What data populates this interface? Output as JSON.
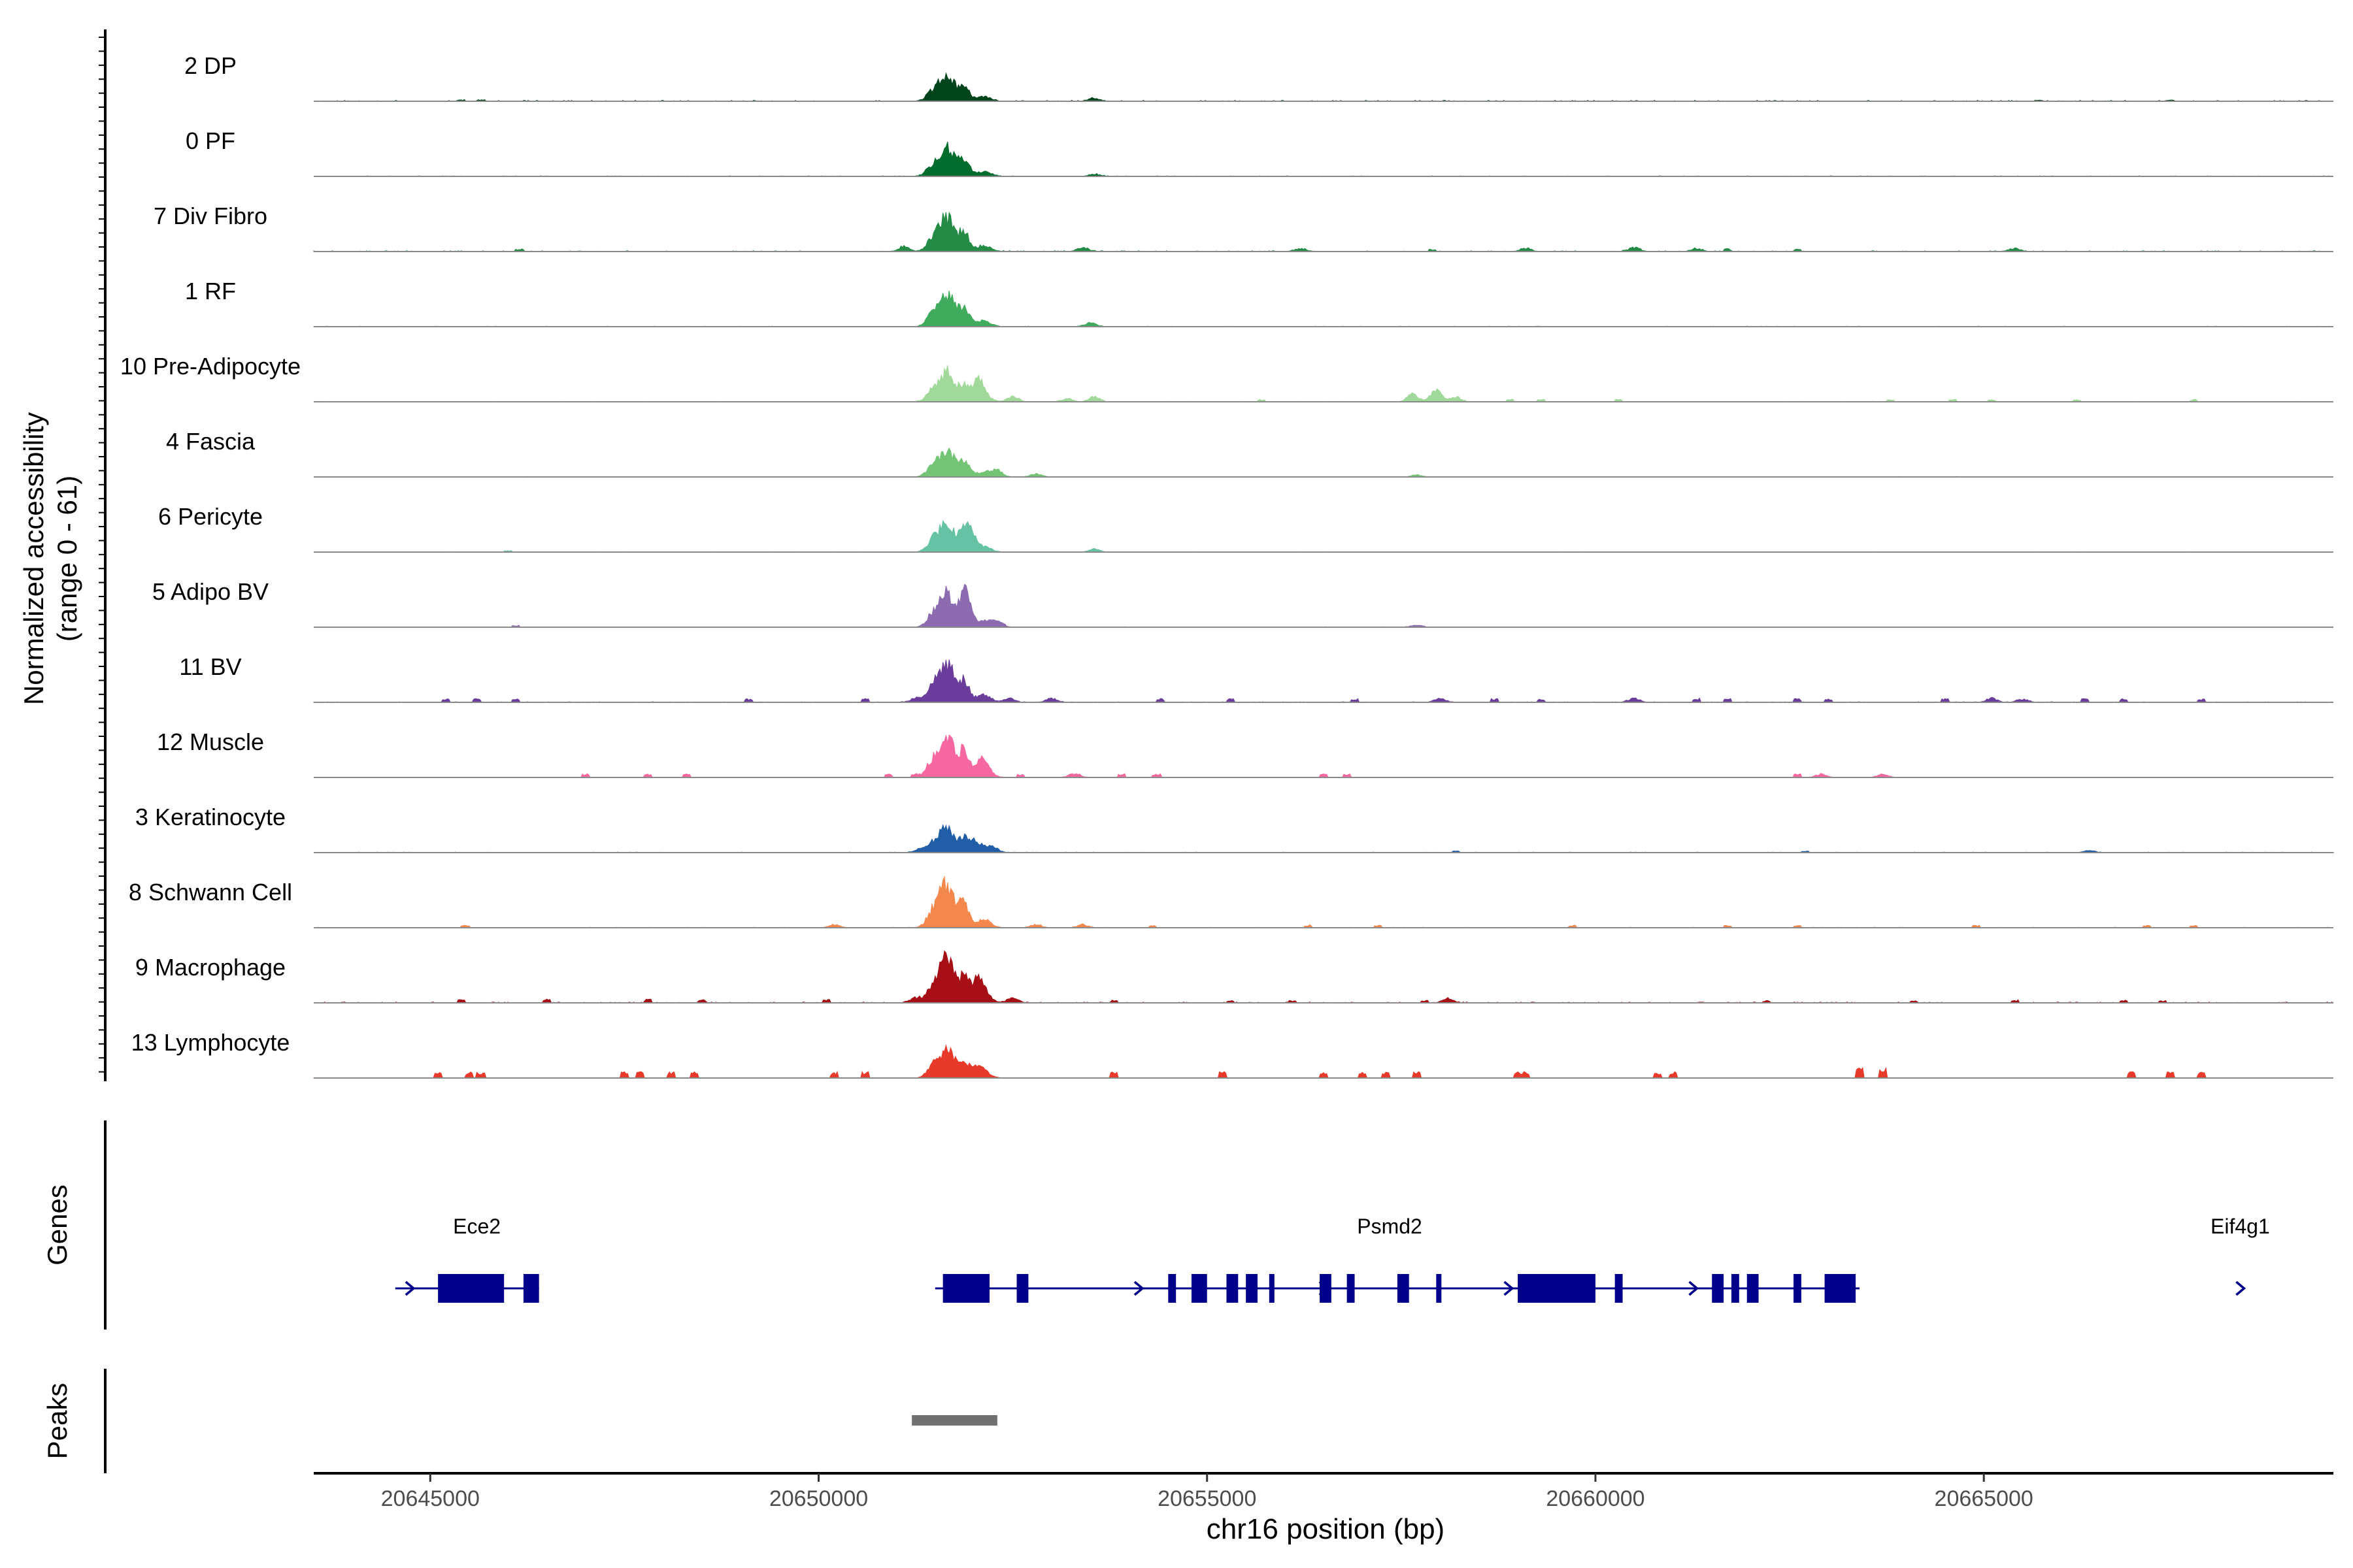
{
  "chart_data": {
    "type": "area",
    "title": "",
    "ylabel_lines": [
      "Normalized accessibility",
      "(range 0 - 61)"
    ],
    "xlabel": "chr16 position (bp)",
    "y_range": [
      0,
      61
    ],
    "x_range": [
      20643500,
      20669500
    ],
    "x_ticks": [
      20645000,
      20650000,
      20655000,
      20660000,
      20665000
    ],
    "x_tick_labels": [
      "20645000",
      "20650000",
      "20655000",
      "20660000",
      "20665000"
    ],
    "main_peak_bp": 20651650,
    "series": [
      {
        "name": "2 DP",
        "color": "#00441b",
        "peak": 24,
        "noise": 0.9,
        "secondary": [
          [
            20653550,
            3
          ]
        ],
        "blips": [
          [
            20645400,
            1.2
          ],
          [
            20645650,
            1.2
          ],
          [
            20665700,
            1.0
          ],
          [
            20667400,
            1.0
          ]
        ]
      },
      {
        "name": "0 PF",
        "color": "#006d2c",
        "peak": 27,
        "noise": 0.6,
        "secondary": [
          [
            20653550,
            2
          ]
        ],
        "blips": []
      },
      {
        "name": "7 Div Fibro",
        "color": "#238b45",
        "peak": 31,
        "noise": 0.8,
        "secondary": [
          [
            20653400,
            4
          ],
          [
            20651100,
            5
          ],
          [
            20656200,
            3
          ],
          [
            20659100,
            3
          ],
          [
            20660500,
            4
          ],
          [
            20661300,
            3
          ],
          [
            20665400,
            3
          ]
        ],
        "blips": [
          [
            20646150,
            2
          ],
          [
            20657900,
            2
          ],
          [
            20661700,
            2
          ],
          [
            20662600,
            2
          ]
        ]
      },
      {
        "name": "1 RF",
        "color": "#41ab5d",
        "peak": 31,
        "noise": 0.5,
        "secondary": [
          [
            20653500,
            4
          ]
        ],
        "blips": []
      },
      {
        "name": "10 Pre-Adipocyte",
        "color": "#a1d99b",
        "peak": 27,
        "noise": 0.5,
        "secondary": [
          [
            20652050,
            18
          ],
          [
            20652500,
            5
          ],
          [
            20653200,
            3
          ],
          [
            20653550,
            5
          ],
          [
            20657650,
            8
          ],
          [
            20657950,
            11
          ],
          [
            20658200,
            5
          ]
        ],
        "blips": [
          [
            20655700,
            2
          ],
          [
            20658900,
            2
          ],
          [
            20659300,
            2
          ],
          [
            20660300,
            2
          ],
          [
            20663800,
            2
          ],
          [
            20664600,
            2
          ],
          [
            20665100,
            2
          ],
          [
            20666200,
            2
          ],
          [
            20667700,
            2
          ]
        ]
      },
      {
        "name": "4 Fascia",
        "color": "#74c476",
        "peak": 25,
        "noise": 0.4,
        "secondary": [
          [
            20652300,
            6
          ],
          [
            20652800,
            3
          ],
          [
            20657700,
            2
          ]
        ],
        "blips": []
      },
      {
        "name": "6 Pericyte",
        "color": "#66c2a4",
        "peak": 28,
        "noise": 0.4,
        "secondary": [
          [
            20651950,
            17
          ],
          [
            20653550,
            3
          ]
        ],
        "blips": [
          [
            20646000,
            1.2
          ]
        ]
      },
      {
        "name": "5 Adipo BV",
        "color": "#8c6bb1",
        "peak": 31,
        "noise": 0.4,
        "secondary": [
          [
            20651900,
            20
          ],
          [
            20652300,
            6
          ],
          [
            20657700,
            2
          ]
        ],
        "blips": [
          [
            20646100,
            1.2
          ]
        ]
      },
      {
        "name": "11 BV",
        "color": "#6a3d9a",
        "peak": 36,
        "noise": 0.6,
        "secondary": [
          [
            20651250,
            4
          ],
          [
            20652450,
            4
          ],
          [
            20653000,
            4
          ],
          [
            20658000,
            4
          ],
          [
            20660500,
            4
          ],
          [
            20665100,
            4
          ],
          [
            20665500,
            3
          ]
        ],
        "blips": [
          [
            20645200,
            3
          ],
          [
            20645600,
            3
          ],
          [
            20646100,
            3
          ],
          [
            20649100,
            3
          ],
          [
            20650600,
            3
          ],
          [
            20654400,
            3
          ],
          [
            20655300,
            3
          ],
          [
            20656900,
            3
          ],
          [
            20658700,
            3
          ],
          [
            20659300,
            3
          ],
          [
            20661300,
            3
          ],
          [
            20661700,
            3
          ],
          [
            20662600,
            3
          ],
          [
            20663000,
            3
          ],
          [
            20664500,
            3
          ],
          [
            20666300,
            3
          ],
          [
            20666800,
            3
          ],
          [
            20667800,
            3
          ]
        ]
      },
      {
        "name": "12 Muscle",
        "color": "#f768a1",
        "peak": 41,
        "noise": 0.3,
        "secondary": [
          [
            20652100,
            12
          ],
          [
            20653300,
            4
          ],
          [
            20662900,
            3
          ],
          [
            20663700,
            3
          ]
        ],
        "blips": [
          [
            20647000,
            3
          ],
          [
            20647800,
            3
          ],
          [
            20648300,
            3
          ],
          [
            20650900,
            3
          ],
          [
            20651250,
            3
          ],
          [
            20652600,
            3
          ],
          [
            20653900,
            3
          ],
          [
            20654350,
            3
          ],
          [
            20656500,
            3
          ],
          [
            20656800,
            3
          ],
          [
            20662600,
            3
          ]
        ]
      },
      {
        "name": "3 Keratinocyte",
        "color": "#225ea8",
        "peak": 22,
        "noise": 0.5,
        "secondary": [
          [
            20651300,
            3
          ],
          [
            20652000,
            9
          ],
          [
            20652250,
            4
          ],
          [
            20666350,
            2
          ]
        ],
        "blips": [
          [
            20658200,
            1.5
          ],
          [
            20662700,
            1.5
          ]
        ]
      },
      {
        "name": "8 Schwann Cell",
        "color": "#f4874b",
        "peak": 40,
        "noise": 0.5,
        "secondary": [
          [
            20650200,
            3
          ],
          [
            20652800,
            3
          ],
          [
            20653400,
            3
          ]
        ],
        "blips": [
          [
            20645450,
            2
          ],
          [
            20654300,
            2
          ],
          [
            20656300,
            2
          ],
          [
            20657200,
            2
          ],
          [
            20659700,
            2
          ],
          [
            20661700,
            2
          ],
          [
            20662600,
            2
          ],
          [
            20664900,
            2
          ],
          [
            20667100,
            2
          ],
          [
            20667700,
            2
          ]
        ]
      },
      {
        "name": "9 Macrophage",
        "color": "#a50f15",
        "peak": 39,
        "noise": 0.8,
        "secondary": [
          [
            20651250,
            5
          ],
          [
            20652050,
            20
          ],
          [
            20652500,
            5
          ],
          [
            20658100,
            4
          ]
        ],
        "blips": [
          [
            20645400,
            3
          ],
          [
            20646500,
            3
          ],
          [
            20647800,
            3
          ],
          [
            20648500,
            3
          ],
          [
            20650100,
            3
          ],
          [
            20653800,
            2
          ],
          [
            20655300,
            2
          ],
          [
            20656100,
            2
          ],
          [
            20657800,
            2
          ],
          [
            20662200,
            2
          ],
          [
            20664100,
            2
          ],
          [
            20665400,
            2
          ],
          [
            20666800,
            2
          ],
          [
            20667300,
            2
          ]
        ]
      },
      {
        "name": "13 Lymphocyte",
        "color": "#e83a2a",
        "peak": 27,
        "noise": 0.2,
        "secondary": [
          [
            20652050,
            8
          ]
        ],
        "blips": [
          [
            20645100,
            5
          ],
          [
            20645500,
            5
          ],
          [
            20645650,
            5
          ],
          [
            20647500,
            5
          ],
          [
            20647700,
            5
          ],
          [
            20648100,
            5
          ],
          [
            20648400,
            5
          ],
          [
            20650200,
            5
          ],
          [
            20650600,
            5
          ],
          [
            20653800,
            5
          ],
          [
            20655200,
            5
          ],
          [
            20656500,
            5
          ],
          [
            20657000,
            5
          ],
          [
            20657300,
            5
          ],
          [
            20657700,
            5
          ],
          [
            20659000,
            5
          ],
          [
            20659100,
            5
          ],
          [
            20660800,
            5
          ],
          [
            20661000,
            5
          ],
          [
            20663400,
            8
          ],
          [
            20663700,
            8
          ],
          [
            20666900,
            5
          ],
          [
            20667400,
            5
          ],
          [
            20667800,
            5
          ]
        ]
      }
    ],
    "genes_track_label": "Genes",
    "genes": [
      {
        "name": "Ece2",
        "label_bp": 20645600,
        "start": 20644550,
        "end": 20646400,
        "strand": "+",
        "exons": [
          [
            20645100,
            20645950
          ],
          [
            20646200,
            20646400
          ]
        ]
      },
      {
        "name": "Psmd2",
        "label_bp": 20657350,
        "start": 20651500,
        "end": 20663400,
        "strand": "+",
        "exons": [
          [
            20651600,
            20652200
          ],
          [
            20652550,
            20652700
          ],
          [
            20654500,
            20654600
          ],
          [
            20654800,
            20655000
          ],
          [
            20655250,
            20655400
          ],
          [
            20655500,
            20655650
          ],
          [
            20655800,
            20655850
          ],
          [
            20656450,
            20656600
          ],
          [
            20656800,
            20656900
          ],
          [
            20657450,
            20657600
          ],
          [
            20657950,
            20658000
          ],
          [
            20659000,
            20660000
          ],
          [
            20660250,
            20660350
          ],
          [
            20661500,
            20661650
          ],
          [
            20661750,
            20661850
          ],
          [
            20661950,
            20662100
          ],
          [
            20662550,
            20662650
          ],
          [
            20662950,
            20663350
          ]
        ]
      },
      {
        "name": "Eif4g1",
        "label_bp": 20668300,
        "start": 20668300,
        "end": 20668450,
        "strand": "+",
        "exons": []
      }
    ],
    "gene_color": "#00008b",
    "peaks_track_label": "Peaks",
    "peaks": [
      [
        20651200,
        20652300
      ]
    ],
    "peak_color": "#707070"
  }
}
